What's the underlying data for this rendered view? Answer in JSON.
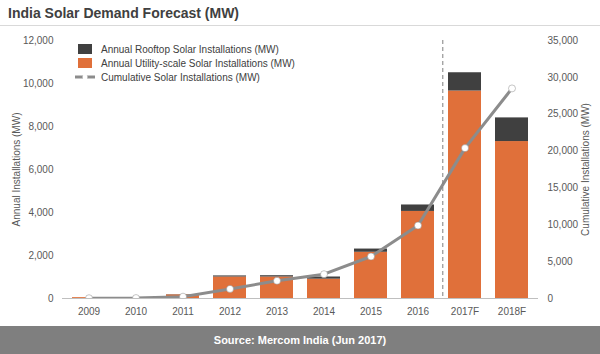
{
  "chart_data": {
    "type": "bar",
    "title": "India Solar Demand Forecast (MW)",
    "source": "Source: Mercom India (Jun 2017)",
    "y_label": "Annual Installations (MW)",
    "y2_label": "Cumulative Installations (MW)",
    "categories": [
      "2009",
      "2010",
      "2011",
      "2012",
      "2013",
      "2014",
      "2015",
      "2016",
      "2017F",
      "2018F"
    ],
    "stacked": true,
    "grid": false,
    "legend": "top-left",
    "series": [
      {
        "name": "Annual Rooftop Solar Installations (MW)",
        "type": "bar",
        "color": "#404040",
        "values": [
          0,
          0,
          10,
          50,
          60,
          100,
          150,
          300,
          850,
          1100
        ]
      },
      {
        "name": "Annual Utility-scale Solar Installations (MW)",
        "type": "bar",
        "color": "#e0703a",
        "values": [
          40,
          20,
          170,
          1000,
          1000,
          900,
          2150,
          4050,
          9650,
          7300
        ]
      },
      {
        "name": "Cumulative Solar Installations (MW)",
        "type": "line",
        "axis": "y2",
        "color": "#8c8c8c",
        "marker": "circle",
        "line_style": "solid",
        "values": [
          40,
          60,
          250,
          1300,
          2400,
          3300,
          5700,
          9900,
          20400,
          28500
        ]
      }
    ],
    "ylim": [
      0,
      12000
    ],
    "yticks": [
      0,
      {
        "value": 2000,
        "label": "2,000"
      },
      {
        "value": 4000,
        "label": "4,000"
      },
      {
        "value": 6000,
        "label": "6,000"
      },
      {
        "value": 8000,
        "label": "8,000"
      },
      {
        "value": 10000,
        "label": "10,000"
      },
      {
        "value": 12000,
        "label": "12,000"
      }
    ],
    "y2lim": [
      0,
      35000
    ],
    "y2ticks": [
      0,
      {
        "value": 5000,
        "label": "5,000"
      },
      {
        "value": 10000,
        "label": "10,000"
      },
      {
        "value": 15000,
        "label": "15,000"
      },
      {
        "value": 20000,
        "label": "20,000"
      },
      {
        "value": 25000,
        "label": "25,000"
      },
      {
        "value": 30000,
        "label": "30,000"
      },
      {
        "value": 35000,
        "label": "35,000"
      }
    ]
  }
}
